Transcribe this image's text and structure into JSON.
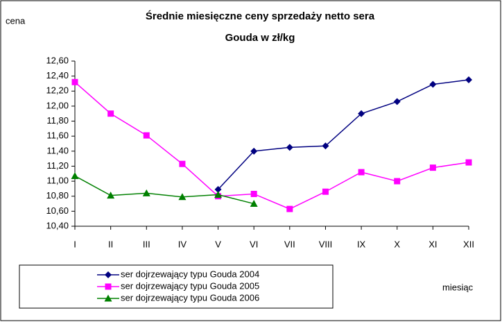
{
  "chart_data": {
    "type": "line",
    "title": [
      "Średnie miesięczne ceny sprzedaży netto sera",
      "Gouda w zł/kg"
    ],
    "y_label": "cena",
    "x_label": "miesiąc",
    "categories": [
      "I",
      "II",
      "III",
      "IV",
      "V",
      "VI",
      "VII",
      "VIII",
      "IX",
      "X",
      "XI",
      "XII"
    ],
    "series": [
      {
        "name": "ser dojrzewający typu Gouda 2004",
        "color": "#000080",
        "marker": "diamond",
        "values": [
          null,
          null,
          null,
          null,
          10.89,
          11.4,
          11.45,
          11.47,
          11.9,
          12.06,
          12.29,
          12.35
        ]
      },
      {
        "name": "ser dojrzewający typu Gouda 2005",
        "color": "#ff00ff",
        "marker": "square",
        "values": [
          12.32,
          11.9,
          11.61,
          11.23,
          10.8,
          10.83,
          10.63,
          10.86,
          11.12,
          11.0,
          11.18,
          11.25
        ]
      },
      {
        "name": "ser dojrzewający typu Gouda 2006",
        "color": "#008000",
        "marker": "triangle",
        "values": [
          11.07,
          10.81,
          10.84,
          10.79,
          10.82,
          10.7,
          null,
          null,
          null,
          null,
          null,
          null
        ]
      }
    ],
    "ylim": [
      10.4,
      12.6
    ],
    "yticks": [
      {
        "value": 10.4,
        "label": "10,40"
      },
      {
        "value": 10.6,
        "label": "10,60"
      },
      {
        "value": 10.8,
        "label": "10,80"
      },
      {
        "value": 11.0,
        "label": "11,00"
      },
      {
        "value": 11.2,
        "label": "11,20"
      },
      {
        "value": 11.4,
        "label": "11,40"
      },
      {
        "value": 11.6,
        "label": "11,60"
      },
      {
        "value": 11.8,
        "label": "11,80"
      },
      {
        "value": 12.0,
        "label": "12,00"
      },
      {
        "value": 12.2,
        "label": "12,20"
      },
      {
        "value": 12.4,
        "label": "12,40"
      },
      {
        "value": 12.6,
        "label": "12,60"
      }
    ],
    "grid": false
  }
}
